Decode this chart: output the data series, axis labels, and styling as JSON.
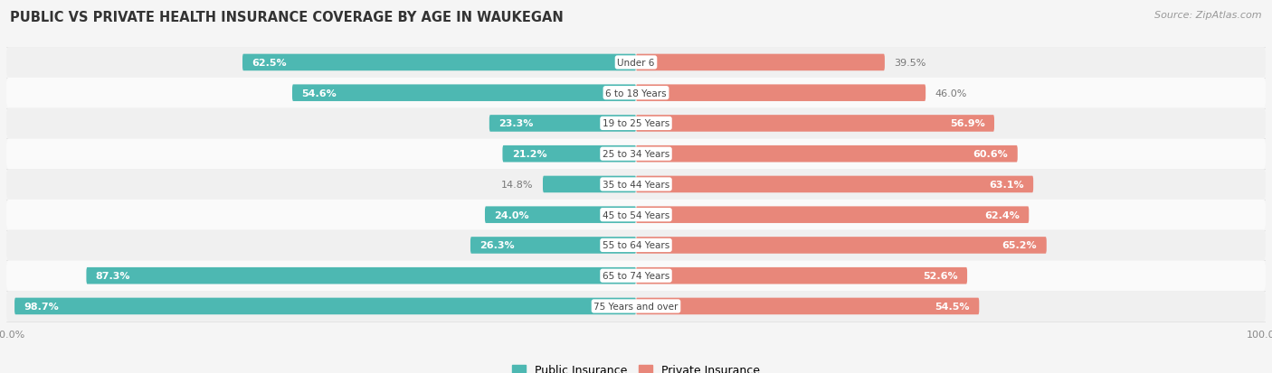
{
  "title": "PUBLIC VS PRIVATE HEALTH INSURANCE COVERAGE BY AGE IN WAUKEGAN",
  "source": "Source: ZipAtlas.com",
  "categories": [
    "Under 6",
    "6 to 18 Years",
    "19 to 25 Years",
    "25 to 34 Years",
    "35 to 44 Years",
    "45 to 54 Years",
    "55 to 64 Years",
    "65 to 74 Years",
    "75 Years and over"
  ],
  "public_values": [
    62.5,
    54.6,
    23.3,
    21.2,
    14.8,
    24.0,
    26.3,
    87.3,
    98.7
  ],
  "private_values": [
    39.5,
    46.0,
    56.9,
    60.6,
    63.1,
    62.4,
    65.2,
    52.6,
    54.5
  ],
  "public_color": "#4db8b2",
  "private_color": "#e8877a",
  "row_bg_color_odd": "#f0f0f0",
  "row_bg_color_even": "#fafafa",
  "title_color": "#333333",
  "source_color": "#999999",
  "value_color_on_teal": "#ffffff",
  "value_color_on_salmon": "#ffffff",
  "value_color_off": "#777777",
  "label_bg_color": "#ffffff",
  "label_text_color": "#444444",
  "axis_label_color": "#888888",
  "max_value": 100.0,
  "legend_labels": [
    "Public Insurance",
    "Private Insurance"
  ],
  "title_fontsize": 10.5,
  "source_fontsize": 8,
  "value_fontsize": 8,
  "label_fontsize": 7.5,
  "axis_fontsize": 8,
  "legend_fontsize": 9
}
